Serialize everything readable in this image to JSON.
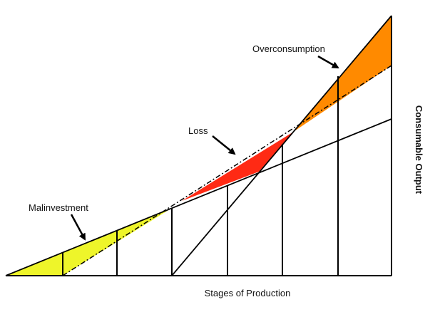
{
  "labels": {
    "overconsumption": "Overconsumption",
    "loss": "Loss",
    "malinvestment": "Malinvestment",
    "x_axis": "Stages of Production",
    "y_axis": "Consumable Output"
  },
  "colors": {
    "malinvestment_fill": "#eef52a",
    "loss_fill": "#ff2a14",
    "overconsumption_fill": "#ff8a00",
    "line": "#000000",
    "background": "#ffffff"
  }
}
